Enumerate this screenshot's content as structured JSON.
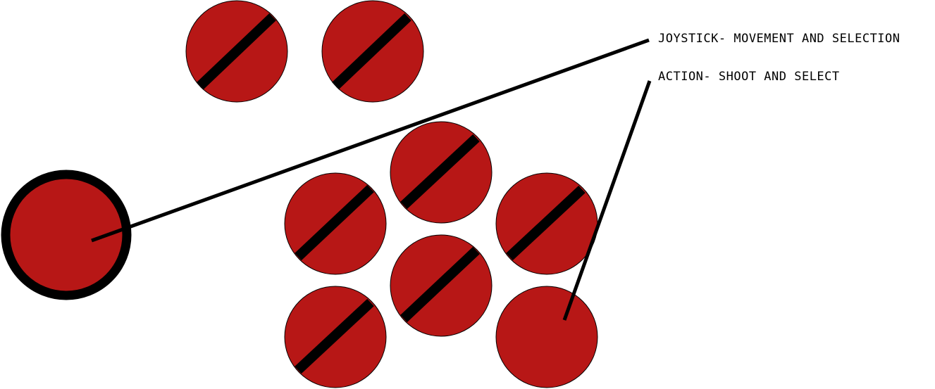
{
  "colors": {
    "button_fill": "#b71716",
    "stroke": "#000000",
    "background": "#ffffff"
  },
  "callouts": {
    "joystick": "JOYSTICK- MOVEMENT AND SELECTION",
    "action": "ACTION- SHOOT AND SELECT"
  }
}
